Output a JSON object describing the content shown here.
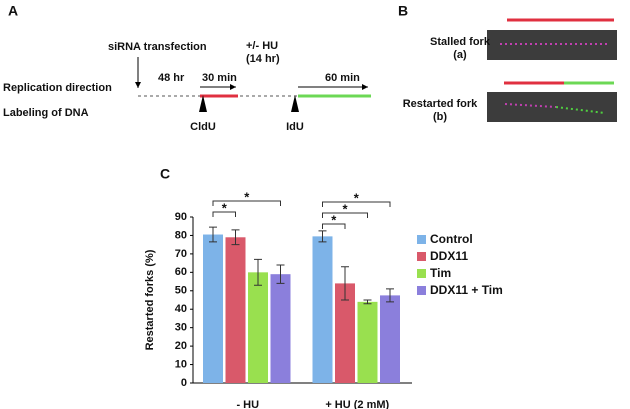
{
  "panel_a": {
    "label": "A",
    "transfection": "siRNA transfection",
    "replication_direction": "Replication direction",
    "labeling": "Labeling of DNA",
    "time_48": "48 hr",
    "time_30": "30 min",
    "hu": "+/-  HU",
    "hu_time": "(14 hr)",
    "time_60": "60 min",
    "cldu": "CldU",
    "idu": "IdU"
  },
  "panel_b": {
    "label": "B",
    "stalled": "Stalled fork",
    "stalled_tag": "(a)",
    "restarted": "Restarted fork",
    "restarted_tag": "(b)"
  },
  "chart_data": {
    "type": "bar",
    "panel_label": "C",
    "ylabel": "Restarted forks (%)",
    "categories": [
      "- HU",
      "+ HU (2 mM)"
    ],
    "series": [
      {
        "name": "Control",
        "color": "#7db3e8",
        "values": [
          80.5,
          79.5
        ],
        "errors": [
          4,
          3
        ]
      },
      {
        "name": "DDX11",
        "color": "#d9596a",
        "values": [
          79,
          54
        ],
        "errors": [
          4,
          9
        ]
      },
      {
        "name": "Tim",
        "color": "#99e04f",
        "values": [
          60,
          44
        ],
        "errors": [
          7,
          1
        ]
      },
      {
        "name": "DDX11 + Tim",
        "color": "#8b7fdc",
        "values": [
          59,
          47.5
        ],
        "errors": [
          5,
          3.5
        ]
      }
    ],
    "ylim": [
      0,
      90
    ],
    "yticks": [
      0,
      10,
      20,
      30,
      40,
      50,
      60,
      70,
      80,
      90
    ],
    "annotations": [
      "*",
      "*",
      "*",
      "*",
      "*"
    ]
  }
}
